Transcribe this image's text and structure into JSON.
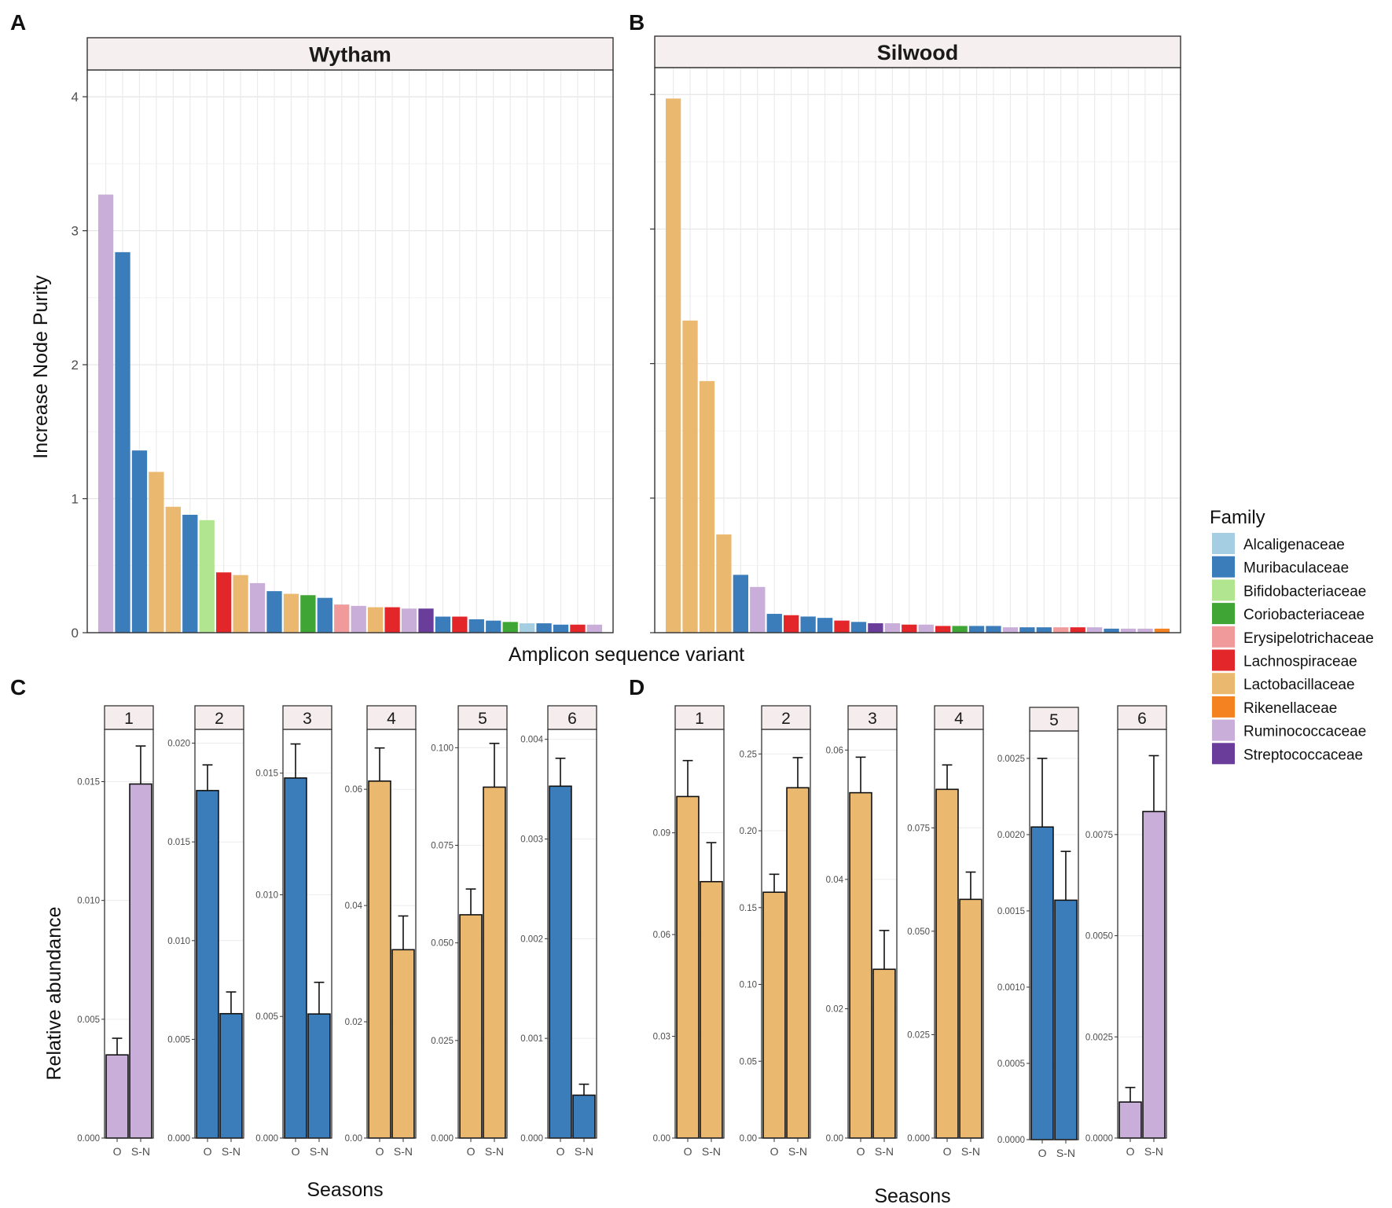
{
  "colors": {
    "Alcaligenaceae": "#a6cee3",
    "Muribaculaceae": "#3b7dbb",
    "Bifidobacteriaceae": "#b2e590",
    "Coriobacteriaceae": "#3fa535",
    "Erysipelotrichaceae": "#f09a9c",
    "Lachnospiraceae": "#e3262a",
    "Lactobacillaceae": "#ebb870",
    "Rikenellaceae": "#f58220",
    "Ruminococcaceae": "#c8aed8",
    "Streptococcaceae": "#6a3d9a"
  },
  "labels": {
    "panel_a": "A",
    "panel_b": "B",
    "panel_c": "C",
    "panel_d": "D",
    "top_y_title": "Increase  Node Purity",
    "top_x_title": "Amplicon sequence variant",
    "bottom_y_title": "Relative abundance",
    "bottom_x_title_c": "Seasons",
    "bottom_x_title_d": "Seasons"
  },
  "legend": {
    "title": "Family",
    "items": [
      "Alcaligenaceae",
      "Muribaculaceae",
      "Bifidobacteriaceae",
      "Coriobacteriaceae",
      "Erysipelotrichaceae",
      "Lachnospiraceae",
      "Lactobacillaceae",
      "Rikenellaceae",
      "Ruminococcaceae",
      "Streptococcaceae"
    ]
  },
  "chart_data": [
    {
      "type": "bar",
      "panel": "A",
      "title": "Wytham",
      "xlabel": "Amplicon sequence variant",
      "ylabel": "Increase  Node Purity",
      "ylim": [
        0,
        4.2
      ],
      "yticks": [
        0,
        1,
        2,
        3,
        4
      ],
      "values": [
        3.27,
        2.84,
        1.36,
        1.2,
        0.94,
        0.88,
        0.84,
        0.45,
        0.43,
        0.37,
        0.31,
        0.29,
        0.28,
        0.26,
        0.21,
        0.2,
        0.19,
        0.19,
        0.18,
        0.18,
        0.12,
        0.12,
        0.1,
        0.09,
        0.08,
        0.07,
        0.07,
        0.06,
        0.06,
        0.06
      ],
      "families": [
        "Ruminococcaceae",
        "Muribaculaceae",
        "Muribaculaceae",
        "Lactobacillaceae",
        "Lactobacillaceae",
        "Muribaculaceae",
        "Bifidobacteriaceae",
        "Lachnospiraceae",
        "Lactobacillaceae",
        "Ruminococcaceae",
        "Muribaculaceae",
        "Lactobacillaceae",
        "Coriobacteriaceae",
        "Muribaculaceae",
        "Erysipelotrichaceae",
        "Ruminococcaceae",
        "Lactobacillaceae",
        "Lachnospiraceae",
        "Ruminococcaceae",
        "Streptococcaceae",
        "Muribaculaceae",
        "Lachnospiraceae",
        "Muribaculaceae",
        "Muribaculaceae",
        "Coriobacteriaceae",
        "Alcaligenaceae",
        "Muribaculaceae",
        "Muribaculaceae",
        "Lachnospiraceae",
        "Ruminococcaceae"
      ]
    },
    {
      "type": "bar",
      "panel": "B",
      "title": "Silwood",
      "xlabel": "Amplicon sequence variant",
      "ylabel": "Increase  Node Purity",
      "ylim": [
        0,
        4.2
      ],
      "yticks": [
        0,
        1,
        2,
        3,
        4
      ],
      "values": [
        3.97,
        2.32,
        1.87,
        0.73,
        0.43,
        0.34,
        0.14,
        0.13,
        0.12,
        0.11,
        0.09,
        0.08,
        0.07,
        0.07,
        0.06,
        0.06,
        0.05,
        0.05,
        0.05,
        0.05,
        0.04,
        0.04,
        0.04,
        0.04,
        0.04,
        0.04,
        0.03,
        0.03,
        0.03,
        0.03
      ],
      "families": [
        "Lactobacillaceae",
        "Lactobacillaceae",
        "Lactobacillaceae",
        "Lactobacillaceae",
        "Muribaculaceae",
        "Ruminococcaceae",
        "Muribaculaceae",
        "Lachnospiraceae",
        "Muribaculaceae",
        "Muribaculaceae",
        "Lachnospiraceae",
        "Muribaculaceae",
        "Streptococcaceae",
        "Ruminococcaceae",
        "Lachnospiraceae",
        "Ruminococcaceae",
        "Lachnospiraceae",
        "Coriobacteriaceae",
        "Muribaculaceae",
        "Muribaculaceae",
        "Ruminococcaceae",
        "Muribaculaceae",
        "Muribaculaceae",
        "Erysipelotrichaceae",
        "Lachnospiraceae",
        "Ruminococcaceae",
        "Muribaculaceae",
        "Ruminococcaceae",
        "Ruminococcaceae",
        "Rikenellaceae"
      ]
    },
    {
      "type": "bar",
      "panel": "C",
      "xlabel": "Seasons",
      "ylabel": "Relative abundance",
      "categories": [
        "O",
        "S-N"
      ],
      "facets": [
        {
          "label": "1",
          "family": "Ruminococcaceae",
          "ylim": [
            0,
            0.0172
          ],
          "yticks": [
            "0.000",
            "0.005",
            "0.010",
            "0.015"
          ],
          "ytick_values": [
            0,
            0.005,
            0.01,
            0.015
          ],
          "values": [
            0.0035,
            0.0149
          ],
          "err": [
            0.0042,
            0.0165
          ]
        },
        {
          "label": "2",
          "family": "Muribaculaceae",
          "ylim": [
            0,
            0.0207
          ],
          "yticks": [
            "0.000",
            "0.005",
            "0.010",
            "0.015",
            "0.020"
          ],
          "ytick_values": [
            0,
            0.005,
            0.01,
            0.015,
            0.02
          ],
          "values": [
            0.0176,
            0.0063
          ],
          "err": [
            0.0189,
            0.0074
          ]
        },
        {
          "label": "3",
          "family": "Muribaculaceae",
          "ylim": [
            0,
            0.0168
          ],
          "yticks": [
            "0.000",
            "0.005",
            "0.010",
            "0.015"
          ],
          "ytick_values": [
            0,
            0.005,
            0.01,
            0.015
          ],
          "values": [
            0.0148,
            0.0051
          ],
          "err": [
            0.0162,
            0.0064
          ]
        },
        {
          "label": "4",
          "family": "Lactobacillaceae",
          "ylim": [
            0,
            0.0703
          ],
          "yticks": [
            "0.00",
            "0.02",
            "0.04",
            "0.06"
          ],
          "ytick_values": [
            0,
            0.02,
            0.04,
            0.06
          ],
          "values": [
            0.0614,
            0.0324
          ],
          "err": [
            0.0671,
            0.0382
          ]
        },
        {
          "label": "5",
          "family": "Lactobacillaceae",
          "ylim": [
            0,
            0.1047
          ],
          "yticks": [
            "0.000",
            "0.025",
            "0.050",
            "0.075",
            "0.100"
          ],
          "ytick_values": [
            0,
            0.025,
            0.05,
            0.075,
            0.1
          ],
          "values": [
            0.0572,
            0.0899
          ],
          "err": [
            0.0638,
            0.1011
          ]
        },
        {
          "label": "6",
          "family": "Muribaculaceae",
          "ylim": [
            0,
            0.0041
          ],
          "yticks": [
            "0.000",
            "0.001",
            "0.002",
            "0.003",
            "0.004"
          ],
          "ytick_values": [
            0,
            0.001,
            0.002,
            0.003,
            0.004
          ],
          "values": [
            0.00353,
            0.00043
          ],
          "err": [
            0.00381,
            0.00054
          ]
        }
      ]
    },
    {
      "type": "bar",
      "panel": "D",
      "xlabel": "Seasons",
      "ylabel": "Relative abundance",
      "categories": [
        "O",
        "S-N"
      ],
      "facets": [
        {
          "label": "1",
          "family": "Lactobacillaceae",
          "ylim": [
            0,
            0.1205
          ],
          "yticks": [
            "0.00",
            "0.03",
            "0.06",
            "0.09"
          ],
          "ytick_values": [
            0,
            0.03,
            0.06,
            0.09
          ],
          "values": [
            0.1007,
            0.0756
          ],
          "err": [
            0.1113,
            0.0871
          ]
        },
        {
          "label": "2",
          "family": "Lactobacillaceae",
          "ylim": [
            0,
            0.266
          ],
          "yticks": [
            "0.00",
            "0.05",
            "0.10",
            "0.15",
            "0.20",
            "0.25"
          ],
          "ytick_values": [
            0,
            0.05,
            0.1,
            0.15,
            0.2,
            0.25
          ],
          "values": [
            0.16,
            0.228
          ],
          "err": [
            0.1717,
            0.2476
          ]
        },
        {
          "label": "3",
          "family": "Lactobacillaceae",
          "ylim": [
            0,
            0.0632
          ],
          "yticks": [
            "0.00",
            "0.02",
            "0.04",
            "0.06"
          ],
          "ytick_values": [
            0,
            0.02,
            0.04,
            0.06
          ],
          "values": [
            0.0534,
            0.0261
          ],
          "err": [
            0.0589,
            0.0321
          ]
        },
        {
          "label": "4",
          "family": "Lactobacillaceae",
          "ylim": [
            0,
            0.0988
          ],
          "yticks": [
            "0.000",
            "0.025",
            "0.050",
            "0.075"
          ],
          "ytick_values": [
            0,
            0.025,
            0.05,
            0.075
          ],
          "values": [
            0.0843,
            0.0577
          ],
          "err": [
            0.0902,
            0.0643
          ]
        },
        {
          "label": "5",
          "family": "Muribaculaceae",
          "ylim": [
            0,
            0.00268
          ],
          "yticks": [
            "0.0000",
            "0.0005",
            "0.0010",
            "0.0015",
            "0.0020",
            "0.0025"
          ],
          "ytick_values": [
            0,
            0.0005,
            0.001,
            0.0015,
            0.002,
            0.0025
          ],
          "values": [
            0.00205,
            0.00157
          ],
          "err": [
            0.0025,
            0.00189
          ]
        },
        {
          "label": "6",
          "family": "Ruminococcaceae",
          "ylim": [
            0,
            0.0101
          ],
          "yticks": [
            "0.0000",
            "0.0025",
            "0.0050",
            "0.0075"
          ],
          "ytick_values": [
            0,
            0.0025,
            0.005,
            0.0075
          ],
          "values": [
            0.00089,
            0.00807
          ],
          "err": [
            0.00125,
            0.00945
          ]
        }
      ]
    }
  ]
}
